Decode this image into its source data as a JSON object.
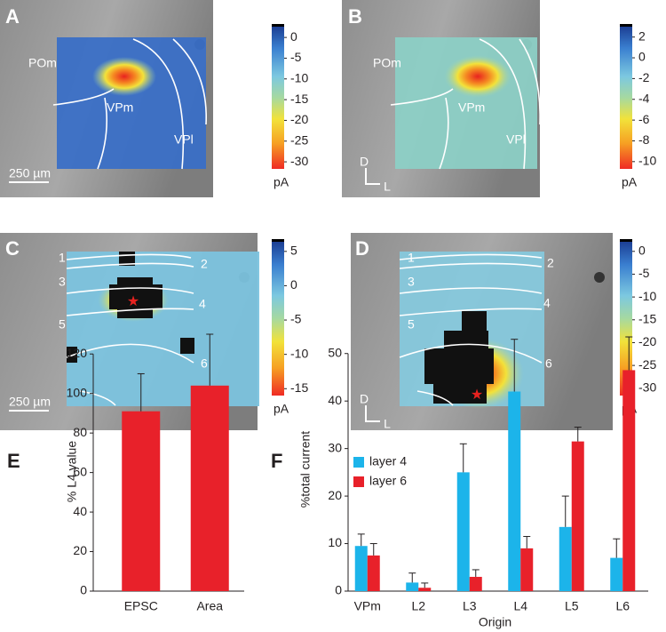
{
  "panels": [
    {
      "letter": "A",
      "regions": [
        "POm",
        "VPm",
        "VPl"
      ],
      "scale_bar": "250 µm",
      "colorbar": {
        "lim": [
          -31.7,
          2.6
        ],
        "ticks": [
          0,
          -5,
          -10,
          -15,
          -20,
          -25,
          -30
        ],
        "unit": "pA"
      }
    },
    {
      "letter": "B",
      "regions": [
        "POm",
        "VPm",
        "VPl"
      ],
      "orientation": [
        "D",
        "L"
      ],
      "colorbar": {
        "lim": [
          -10.7,
          3.0
        ],
        "ticks": [
          2,
          0,
          -2,
          -4,
          -6,
          -8,
          -10
        ],
        "unit": "pA"
      }
    },
    {
      "letter": "C",
      "layers": [
        "1",
        "2",
        "3",
        "4",
        "5",
        "6"
      ],
      "scale_bar": "250 µm",
      "colorbar": {
        "lim": [
          -16.0,
          6.4
        ],
        "ticks": [
          5,
          0,
          -5,
          -10,
          -15
        ],
        "unit": "pA"
      }
    },
    {
      "letter": "D",
      "layers": [
        "1",
        "2",
        "3",
        "4",
        "5",
        "6"
      ],
      "orientation": [
        "D",
        "L"
      ],
      "colorbar": {
        "lim": [
          -31.6,
          2.1
        ],
        "ticks": [
          0,
          -5,
          -10,
          -15,
          -20,
          -25,
          -30
        ],
        "unit": "pA"
      }
    }
  ],
  "chart_data": [
    {
      "type": "bar",
      "panel": "E",
      "ylabel": "% L4 value",
      "categories": [
        "EPSC",
        "Area"
      ],
      "values": [
        91,
        104
      ],
      "errors": [
        19,
        26
      ],
      "color": "#e8212a",
      "ylim": [
        0,
        130
      ],
      "yticks": [
        0,
        20,
        40,
        60,
        80,
        100,
        120
      ]
    },
    {
      "type": "bar",
      "panel": "F",
      "ylabel": "%total current",
      "xlabel": "Origin",
      "categories": [
        "VPm",
        "L2",
        "L3",
        "L4",
        "L5",
        "L6"
      ],
      "series": [
        {
          "name": "layer 4",
          "color": "#1cb4ea",
          "values": [
            9.5,
            1.8,
            25,
            42,
            13.5,
            7
          ],
          "errors": [
            2.5,
            2,
            6,
            11,
            6.5,
            4
          ]
        },
        {
          "name": "layer 6",
          "color": "#e8212a",
          "values": [
            7.5,
            0.7,
            3,
            9,
            31.5,
            46.5
          ],
          "errors": [
            2.5,
            1,
            1.5,
            2.5,
            3,
            7
          ]
        }
      ],
      "ylim": [
        0,
        55
      ],
      "yticks": [
        0,
        10,
        20,
        30,
        40,
        50
      ],
      "legend": "upper-left"
    }
  ]
}
